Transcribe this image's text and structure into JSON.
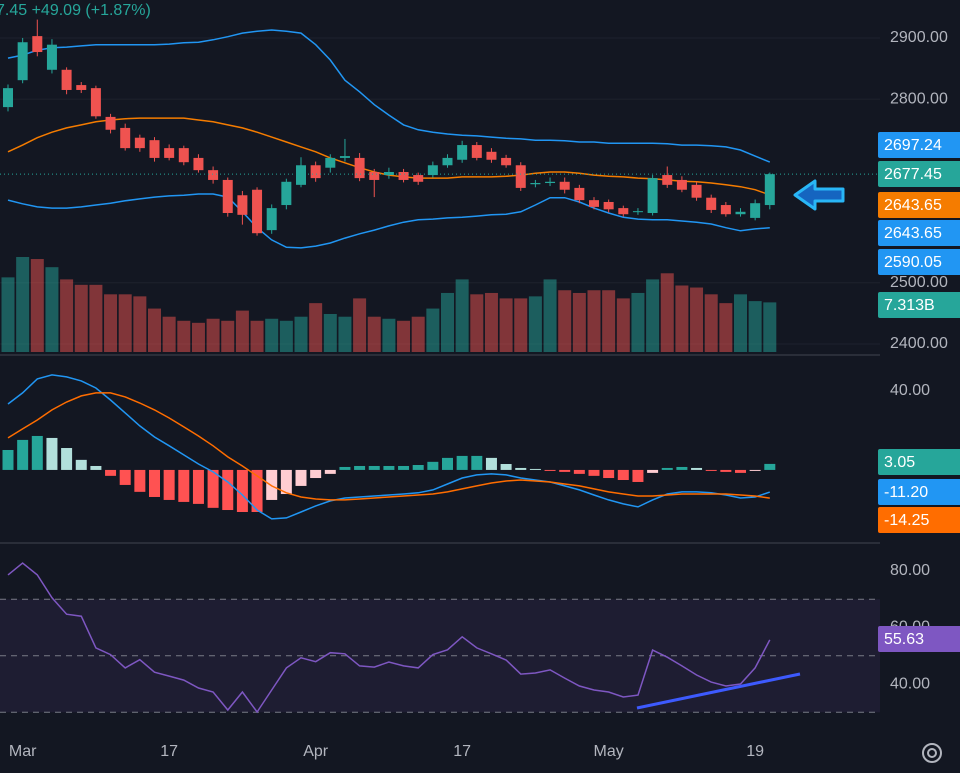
{
  "chart_data": [
    {
      "type": "candlestick",
      "title": "7.45 +49.09 (+1.87%)",
      "categories": [
        null,
        "Mar",
        null,
        null,
        null,
        null,
        null,
        null,
        null,
        null,
        null,
        "17",
        null,
        null,
        null,
        null,
        null,
        null,
        null,
        null,
        null,
        "Apr",
        null,
        null,
        null,
        null,
        null,
        null,
        null,
        null,
        null,
        "17",
        null,
        null,
        null,
        null,
        null,
        null,
        null,
        null,
        null,
        "May",
        null,
        null,
        null,
        null,
        null,
        null,
        null,
        null,
        null,
        "19",
        null
      ],
      "open": [
        2787,
        2831,
        2903,
        2848,
        2848,
        2823,
        2818,
        2771,
        2753,
        2737,
        2733,
        2720,
        2720,
        2704,
        2684,
        2668,
        2643,
        2652,
        2586,
        2627,
        2660,
        2692,
        2688,
        2704,
        2704,
        2681,
        2676,
        2681,
        2676,
        2676,
        2692,
        2701,
        2725,
        2714,
        2704,
        2692,
        2661,
        2663,
        2665,
        2655,
        2635,
        2632,
        2622,
        2616,
        2614,
        2676,
        2668,
        2660,
        2639,
        2627,
        2612,
        2606,
        2627
      ],
      "high": [
        2824,
        2900,
        2930,
        2898,
        2852,
        2828,
        2822,
        2776,
        2760,
        2742,
        2738,
        2726,
        2724,
        2710,
        2690,
        2672,
        2650,
        2656,
        2628,
        2670,
        2705,
        2698,
        2710,
        2735,
        2712,
        2686,
        2688,
        2686,
        2680,
        2698,
        2710,
        2732,
        2730,
        2720,
        2709,
        2697,
        2668,
        2672,
        2672,
        2660,
        2640,
        2636,
        2626,
        2622,
        2676,
        2690,
        2674,
        2665,
        2644,
        2632,
        2622,
        2636,
        2680
      ],
      "low": [
        2780,
        2826,
        2870,
        2842,
        2808,
        2810,
        2768,
        2744,
        2716,
        2714,
        2698,
        2700,
        2692,
        2680,
        2662,
        2608,
        2595,
        2577,
        2580,
        2620,
        2656,
        2665,
        2680,
        2698,
        2666,
        2640,
        2670,
        2664,
        2660,
        2672,
        2688,
        2696,
        2700,
        2696,
        2688,
        2650,
        2656,
        2658,
        2646,
        2630,
        2620,
        2615,
        2608,
        2611,
        2610,
        2655,
        2648,
        2634,
        2614,
        2608,
        2608,
        2602,
        2620
      ],
      "close": [
        2818,
        2893,
        2877,
        2889,
        2815,
        2815,
        2772,
        2750,
        2720,
        2720,
        2704,
        2704,
        2697,
        2684,
        2668,
        2614,
        2611,
        2581,
        2622,
        2665,
        2692,
        2671,
        2704,
        2707,
        2671,
        2668,
        2681,
        2668,
        2665,
        2692,
        2704,
        2725,
        2704,
        2701,
        2692,
        2655,
        2663,
        2665,
        2652,
        2635,
        2624,
        2620,
        2612,
        2617,
        2671,
        2660,
        2652,
        2639,
        2619,
        2612,
        2616,
        2630,
        2677.45
      ],
      "up_color": "#26a69a",
      "down_color": "#ef5350",
      "series": [
        {
          "color": "#2196f3",
          "values": [
            2867,
            2872,
            2880,
            2884,
            2885,
            2887,
            2889,
            2889,
            2889,
            2889,
            2889,
            2890,
            2892,
            2893,
            2897,
            2902,
            2908,
            2911,
            2913,
            2911,
            2908,
            2889,
            2864,
            2831,
            2812,
            2791,
            2774,
            2758,
            2750,
            2746,
            2743,
            2741,
            2740,
            2738,
            2736,
            2735,
            2733,
            2733,
            2732,
            2730,
            2730,
            2728,
            2728,
            2728,
            2728,
            2727,
            2725,
            2725,
            2724,
            2722,
            2717,
            2707,
            2697.24
          ]
        },
        {
          "color": "#f57c00",
          "values": [
            2714,
            2725,
            2737,
            2746,
            2753,
            2758,
            2763,
            2766,
            2768,
            2769,
            2769,
            2769,
            2769,
            2766,
            2763,
            2758,
            2753,
            2746,
            2738,
            2730,
            2722,
            2714,
            2704,
            2696,
            2688,
            2681,
            2676,
            2673,
            2671,
            2671,
            2671,
            2673,
            2673,
            2673,
            2674,
            2676,
            2679,
            2681,
            2681,
            2679,
            2676,
            2674,
            2673,
            2671,
            2670,
            2668,
            2666,
            2665,
            2663,
            2660,
            2657,
            2652,
            2643.65
          ]
        },
        {
          "color": "#2196f3",
          "values": [
            2635,
            2629,
            2624,
            2622,
            2622,
            2624,
            2627,
            2630,
            2634,
            2637,
            2640,
            2642,
            2643,
            2645,
            2645,
            2640,
            2616,
            2590,
            2570,
            2558,
            2557,
            2560,
            2565,
            2573,
            2580,
            2586,
            2593,
            2599,
            2603,
            2604,
            2606,
            2607,
            2609,
            2611,
            2612,
            2616,
            2627,
            2639,
            2639,
            2632,
            2622,
            2614,
            2607,
            2604,
            2603,
            2603,
            2601,
            2599,
            2596,
            2590,
            2585,
            2588,
            2590.05
          ]
        }
      ],
      "volume": {
        "values": [
          11.0,
          14.0,
          13.7,
          12.5,
          10.7,
          9.9,
          9.9,
          8.5,
          8.5,
          8.2,
          6.4,
          5.2,
          4.6,
          4.3,
          4.9,
          4.6,
          6.1,
          4.6,
          4.9,
          4.6,
          5.2,
          7.2,
          5.6,
          5.2,
          7.9,
          5.2,
          4.9,
          4.6,
          5.2,
          6.4,
          8.7,
          10.7,
          8.5,
          8.7,
          7.9,
          7.9,
          8.2,
          10.7,
          9.1,
          8.7,
          9.1,
          9.1,
          7.9,
          8.7,
          10.7,
          11.6,
          9.8,
          9.5,
          8.5,
          7.2,
          8.5,
          7.5,
          7.313
        ],
        "value_labels": [
          null,
          null,
          null,
          null,
          null,
          null,
          null,
          null,
          null,
          null,
          null,
          null,
          null,
          null,
          null,
          null,
          null,
          null,
          null,
          null,
          null,
          null,
          null,
          null,
          null,
          null,
          null,
          null,
          null,
          null,
          null,
          null,
          null,
          null,
          null,
          null,
          null,
          null,
          null,
          null,
          null,
          null,
          null,
          null,
          null,
          null,
          null,
          null,
          null,
          null,
          null,
          null,
          "7.313B"
        ]
      },
      "ylim": [
        2382,
        2962
      ],
      "yticks": [
        {
          "value": 2900,
          "label": "2900.00"
        },
        {
          "value": 2800,
          "label": "2800.00"
        },
        {
          "value": 2500,
          "label": "2500.00"
        },
        {
          "value": 2400,
          "label": "2400.00"
        }
      ],
      "grid": true
    },
    {
      "type": "macd",
      "series": [
        {
          "color": "#2196f3",
          "values": [
            33.4,
            39.0,
            46.1,
            48.1,
            47.1,
            45.1,
            41.5,
            35.4,
            28.9,
            22.3,
            16.7,
            12.2,
            7.6,
            3.0,
            -1.0,
            -6.1,
            -12.7,
            -20.3,
            -24.8,
            -24.3,
            -21.3,
            -18.2,
            -15.7,
            -14.2,
            -13.7,
            -13.2,
            -12.7,
            -12.2,
            -11.6,
            -10.1,
            -7.1,
            -4.1,
            -2.5,
            -2.0,
            -2.5,
            -4.1,
            -5.1,
            -6.1,
            -8.1,
            -10.1,
            -12.7,
            -15.2,
            -17.2,
            -18.7,
            -15.2,
            -12.2,
            -11.1,
            -11.1,
            -11.6,
            -12.7,
            -14.2,
            -13.7,
            -11.2
          ],
          "value_labels": [
            null,
            null,
            null,
            null,
            null,
            null,
            null,
            null,
            null,
            null,
            null,
            null,
            null,
            null,
            null,
            null,
            null,
            null,
            null,
            null,
            null,
            null,
            null,
            null,
            null,
            null,
            null,
            null,
            null,
            null,
            null,
            null,
            null,
            null,
            null,
            null,
            null,
            null,
            null,
            null,
            null,
            null,
            null,
            null,
            null,
            null,
            null,
            null,
            null,
            null,
            null,
            null,
            "-11.20"
          ]
        },
        {
          "color": "#ff6d00",
          "values": [
            16.2,
            20.8,
            25.3,
            30.4,
            34.4,
            37.5,
            39.0,
            39.0,
            37.0,
            33.9,
            30.4,
            26.3,
            21.8,
            17.2,
            12.2,
            6.6,
            2.0,
            -3.0,
            -8.1,
            -11.6,
            -13.7,
            -14.7,
            -15.2,
            -15.2,
            -14.7,
            -14.2,
            -13.7,
            -13.2,
            -12.7,
            -12.2,
            -11.1,
            -9.6,
            -8.1,
            -6.6,
            -5.6,
            -5.1,
            -5.6,
            -6.1,
            -7.1,
            -8.1,
            -9.6,
            -11.1,
            -12.2,
            -13.2,
            -13.2,
            -12.7,
            -12.2,
            -12.2,
            -12.2,
            -12.2,
            -12.7,
            -13.2,
            -14.25
          ]
        }
      ],
      "histogram": {
        "values": [
          10.1,
          15.2,
          17.2,
          16.2,
          11.1,
          5.1,
          2.0,
          -3.0,
          -7.6,
          -11.1,
          -13.7,
          -15.2,
          -16.2,
          -17.2,
          -19.2,
          -20.3,
          -21.3,
          -21.3,
          -15.2,
          -12.2,
          -8.1,
          -4.1,
          -2.0,
          1.5,
          2.0,
          2.0,
          2.0,
          2.0,
          2.5,
          4.1,
          6.1,
          7.1,
          7.1,
          6.1,
          3.0,
          1.0,
          0.5,
          -0.5,
          -1.0,
          -2.0,
          -3.0,
          -4.1,
          -5.1,
          -6.1,
          -1.5,
          1.0,
          1.5,
          1.0,
          -0.5,
          -1.0,
          -1.5,
          -0.5,
          3.05
        ],
        "colors": [
          "#26a69a",
          "#b2dfdb",
          "#ff5252",
          "#ffcdd2"
        ]
      },
      "ylim": [
        -37,
        58.2
      ],
      "yticks": [
        {
          "value": 40,
          "label": "40.00"
        }
      ]
    },
    {
      "type": "line",
      "values": [
        78.6,
        82.8,
        78.6,
        70.5,
        64.7,
        64.0,
        52.8,
        50.4,
        45.7,
        48.6,
        44.2,
        42.8,
        41.4,
        38.6,
        37.2,
        30.8,
        37.2,
        30.1,
        37.9,
        45.7,
        49.3,
        47.9,
        51.1,
        50.7,
        46.4,
        46.0,
        47.8,
        46.4,
        45.7,
        50.4,
        52.1,
        56.7,
        52.8,
        50.7,
        48.5,
        43.5,
        43.9,
        45.0,
        42.1,
        39.3,
        37.9,
        37.2,
        35.4,
        36.1,
        52.0,
        49.5,
        46.4,
        43.2,
        40.7,
        39.3,
        40.0,
        45.7,
        55.63
      ],
      "color": "#7e57c2",
      "levels": [
        70,
        50,
        30
      ],
      "ylim": [
        20.2,
        89.9
      ],
      "yticks": [
        {
          "value": 80,
          "label": "80.00"
        },
        {
          "value": 60,
          "label": "60.00"
        },
        {
          "value": 40,
          "label": "40.00"
        }
      ]
    }
  ]
}
